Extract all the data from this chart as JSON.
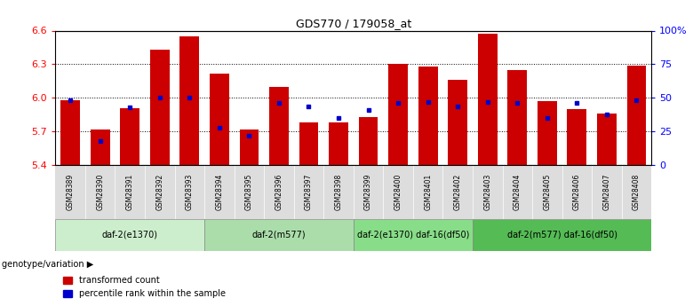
{
  "title": "GDS770 / 179058_at",
  "samples": [
    "GSM28389",
    "GSM28390",
    "GSM28391",
    "GSM28392",
    "GSM28393",
    "GSM28394",
    "GSM28395",
    "GSM28396",
    "GSM28397",
    "GSM28398",
    "GSM28399",
    "GSM28400",
    "GSM28401",
    "GSM28402",
    "GSM28403",
    "GSM28404",
    "GSM28405",
    "GSM28406",
    "GSM28407",
    "GSM28408"
  ],
  "transformed_count": [
    5.98,
    5.72,
    5.91,
    6.43,
    6.55,
    6.22,
    5.72,
    6.1,
    5.78,
    5.78,
    5.83,
    6.3,
    6.28,
    6.16,
    6.57,
    6.25,
    5.97,
    5.9,
    5.86,
    6.29
  ],
  "percentile_rank": [
    48,
    18,
    43,
    50,
    50,
    28,
    22,
    46,
    44,
    35,
    41,
    46,
    47,
    44,
    47,
    46,
    35,
    46,
    38,
    48
  ],
  "ymin": 5.4,
  "ymax": 6.6,
  "yticks": [
    5.4,
    5.7,
    6.0,
    6.3,
    6.6
  ],
  "ytick_labels": [
    "5.4",
    "5.7",
    "6.0",
    "6.3",
    "6.6"
  ],
  "right_yticks": [
    0,
    25,
    50,
    75,
    100
  ],
  "right_ytick_labels": [
    "0",
    "25",
    "50",
    "75",
    "100%"
  ],
  "bar_color": "#cc0000",
  "percentile_color": "#0000cc",
  "bar_bottom": 5.4,
  "groups": [
    {
      "label": "daf-2(e1370)",
      "start": 0,
      "end": 5
    },
    {
      "label": "daf-2(m577)",
      "start": 5,
      "end": 10
    },
    {
      "label": "daf-2(e1370) daf-16(df50)",
      "start": 10,
      "end": 14
    },
    {
      "label": "daf-2(m577) daf-16(df50)",
      "start": 14,
      "end": 20
    }
  ],
  "group_colors": [
    "#cceecc",
    "#aaddaa",
    "#88dd88",
    "#55bb55"
  ],
  "legend_red": "transformed count",
  "legend_blue": "percentile rank within the sample",
  "genotype_label": "genotype/variation"
}
